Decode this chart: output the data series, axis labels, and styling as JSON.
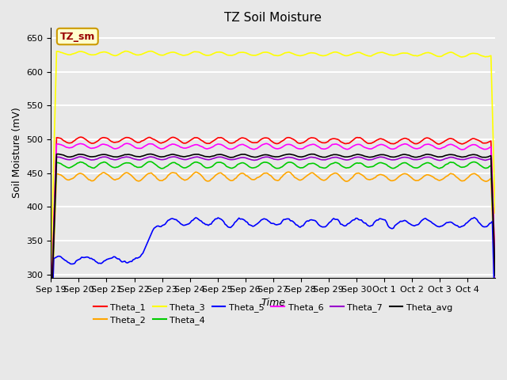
{
  "title": "TZ Soil Moisture",
  "xlabel": "Time",
  "ylabel": "Soil Moisture (mV)",
  "annotation": "TZ_sm",
  "ylim": [
    295,
    665
  ],
  "yticks": [
    300,
    350,
    400,
    450,
    500,
    550,
    600,
    650
  ],
  "series": {
    "Theta_1": {
      "color": "#ff0000",
      "base": 499,
      "amplitude": 6,
      "trend": -0.12
    },
    "Theta_2": {
      "color": "#ffa500",
      "base": 445,
      "amplitude": 8,
      "trend": -0.05
    },
    "Theta_3": {
      "color": "#ffff00",
      "base": 628,
      "amplitude": 4,
      "trend": -0.18
    },
    "Theta_4": {
      "color": "#00cc00",
      "base": 462,
      "amplitude": 6,
      "trend": -0.05
    },
    "Theta_5": {
      "color": "#0000ff",
      "base_early": 321,
      "spike_day": 3.5,
      "base_late": 378,
      "amplitude": 6,
      "trend": -0.25
    },
    "Theta_6": {
      "color": "#ff00ff",
      "base": 490,
      "amplitude": 5,
      "trend": -0.08
    },
    "Theta_7": {
      "color": "#9900cc",
      "base": 472,
      "amplitude": 3,
      "trend": -0.03
    },
    "Theta_avg": {
      "color": "#000000",
      "base": 476,
      "amplitude": 3,
      "trend": -0.02
    }
  },
  "x_tick_labels": [
    "Sep 19",
    "Sep 20",
    "Sep 21",
    "Sep 22",
    "Sep 23",
    "Sep 24",
    "Sep 25",
    "Sep 26",
    "Sep 27",
    "Sep 28",
    "Sep 29",
    "Sep 30",
    "Oct 1",
    "Oct 2",
    "Oct 3",
    "Oct 4"
  ],
  "n_days": 16,
  "n_pts": 320,
  "background_color": "#e8e8e8",
  "grid_color": "#ffffff",
  "linewidth": 1.2
}
